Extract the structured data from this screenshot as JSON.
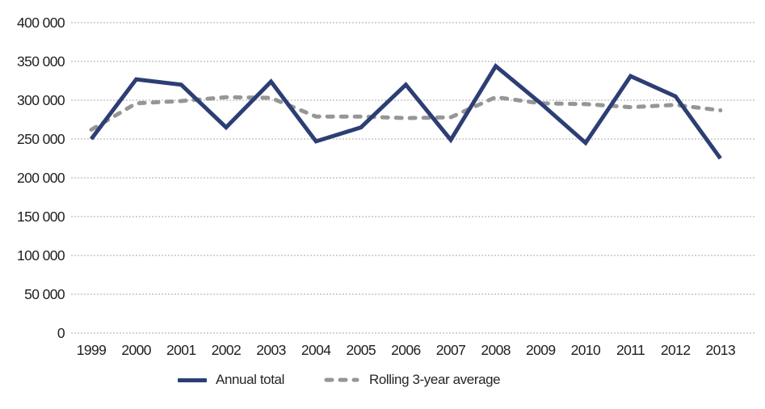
{
  "chart_data": {
    "type": "line",
    "title": "",
    "xlabel": "",
    "ylabel": "",
    "categories": [
      "1999",
      "2000",
      "2001",
      "2002",
      "2003",
      "2004",
      "2005",
      "2006",
      "2007",
      "2008",
      "2009",
      "2010",
      "2011",
      "2012",
      "2013"
    ],
    "series": [
      {
        "name": "Annual total",
        "style": "solid",
        "color": "#2c3e74",
        "values": [
          250000,
          327000,
          320000,
          265000,
          324000,
          247000,
          265000,
          320000,
          249000,
          344000,
          296000,
          245000,
          331000,
          305000,
          225000
        ]
      },
      {
        "name": "Rolling 3-year average",
        "style": "dashed",
        "color": "#969696",
        "values": [
          262000,
          296000,
          299000,
          304000,
          303000,
          279000,
          279000,
          277000,
          278000,
          304000,
          296000,
          295000,
          291000,
          294000,
          287000
        ]
      }
    ],
    "ylim": [
      0,
      400000
    ],
    "ytick_step": 50000,
    "ytick_labels": [
      "400 000",
      "350 000",
      "300 000",
      "250 000",
      "200 000",
      "150 000",
      "100 000",
      "50 000",
      "0"
    ],
    "grid": "horizontal-dotted",
    "gridline_color": "#a8a8a8",
    "legend_position": "bottom-left"
  }
}
